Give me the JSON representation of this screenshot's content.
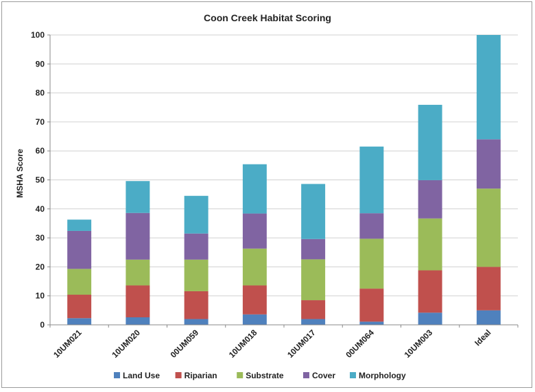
{
  "chart_data": {
    "type": "bar",
    "stacked": true,
    "title": "Coon Creek Habitat Scoring",
    "xlabel": "",
    "ylabel": "MSHA Score",
    "ylim": [
      0,
      100
    ],
    "yticks": [
      0,
      10,
      20,
      30,
      40,
      50,
      60,
      70,
      80,
      90,
      100
    ],
    "grid": true,
    "legend_position": "bottom",
    "categories": [
      "10UM021",
      "10UM020",
      "00UM059",
      "10UM018",
      "10UM017",
      "00UM064",
      "10UM003",
      "Ideal"
    ],
    "series": [
      {
        "name": "Land Use",
        "color": "#4f81bd",
        "values": [
          2.3,
          2.6,
          2.0,
          3.6,
          2.0,
          1.1,
          4.2,
          5.0
        ]
      },
      {
        "name": "Riparian",
        "color": "#c0504d",
        "values": [
          8.1,
          11.0,
          9.6,
          10.0,
          6.5,
          11.4,
          14.6,
          15.0
        ]
      },
      {
        "name": "Substrate",
        "color": "#9bbb59",
        "values": [
          8.9,
          8.9,
          10.9,
          12.7,
          14.1,
          17.2,
          17.9,
          27.0
        ]
      },
      {
        "name": "Cover",
        "color": "#8064a2",
        "values": [
          13.1,
          16.1,
          9.0,
          12.1,
          7.0,
          8.8,
          13.2,
          17.0
        ]
      },
      {
        "name": "Morphology",
        "color": "#4bacc6",
        "values": [
          3.9,
          11.0,
          13.0,
          17.0,
          19.0,
          23.0,
          26.0,
          36.0
        ]
      }
    ]
  }
}
